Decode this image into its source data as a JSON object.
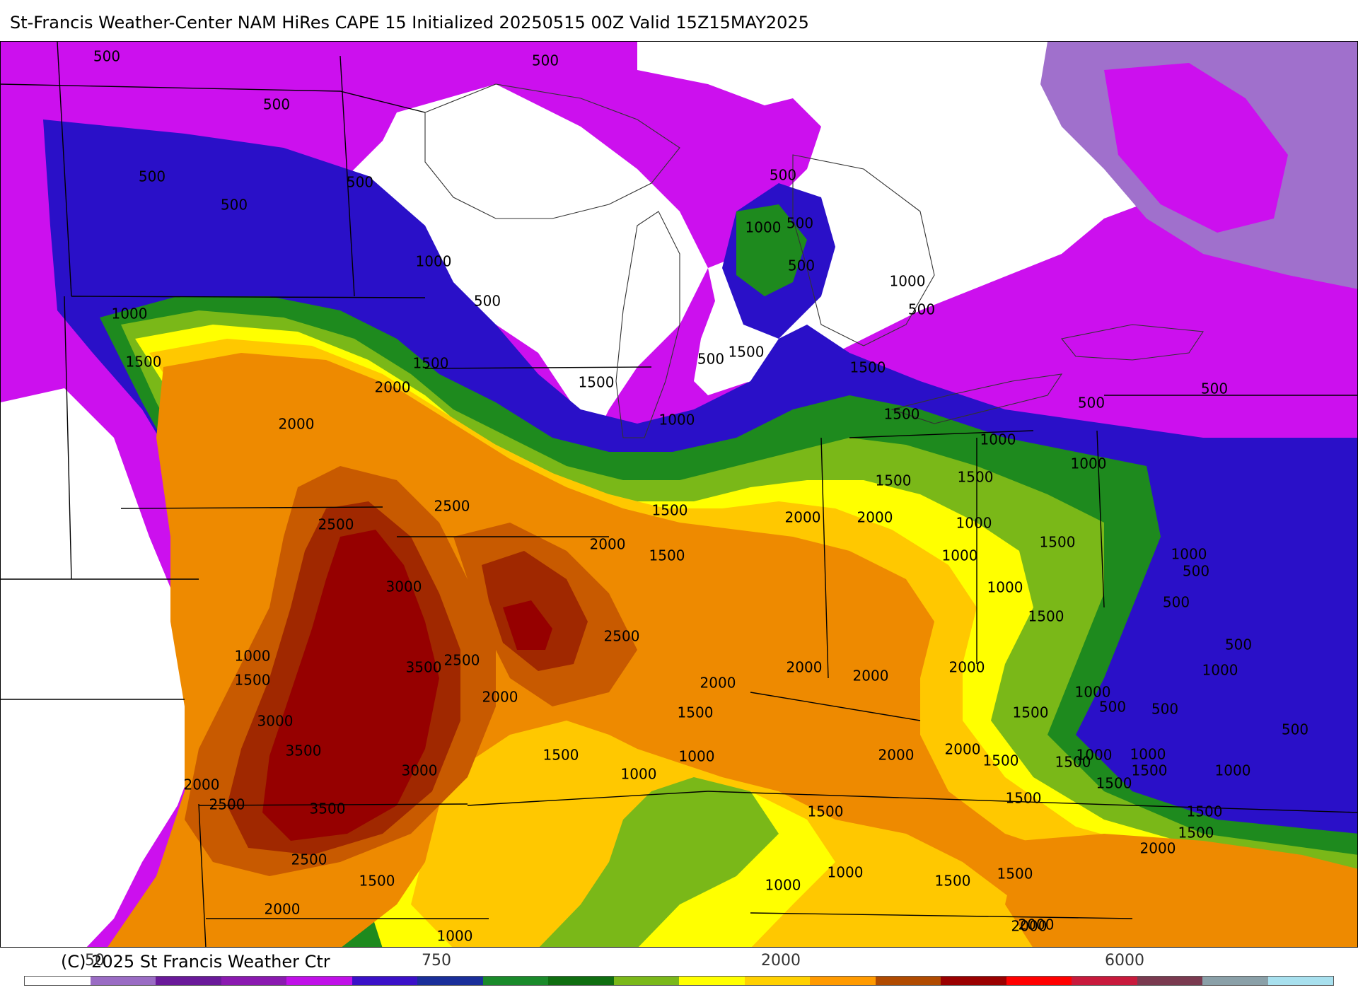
{
  "title": "St-Francis Weather-Center NAM HiRes CAPE  15 Initialized 20250515 00Z Valid 15Z15MAY2025",
  "credit": "(C) 2025 St Francis Weather Ctr",
  "colorbar": {
    "tick_labels": [
      "50",
      "750",
      "2000",
      "6000"
    ],
    "colors": [
      "#ffffff",
      "#9a6cc4",
      "#6a1a9a",
      "#8a1ab0",
      "#c010e8",
      "#3a10c8",
      "#1a2e9a",
      "#1a8a2a",
      "#0f6e10",
      "#7ab81a",
      "#ffff00",
      "#ffd000",
      "#ff9a00",
      "#b04a00",
      "#9a0000",
      "#ff0000",
      "#c81a3c",
      "#7a3a50",
      "#8aa0a8",
      "#a8e0ee"
    ]
  },
  "palette": {
    "none": "#ffffff",
    "light_purple": "#a070cc",
    "magenta": "#cc10ee",
    "violet": "#7a10d0",
    "blue": "#2a10c8",
    "green_dark": "#1e8a1e",
    "green_light": "#7ab818",
    "yellow": "#ffff00",
    "gold": "#ffc800",
    "orange": "#ee8a00",
    "dark_orange": "#c85a00",
    "brown_red": "#a02800",
    "dark_red": "#960000"
  },
  "contour_labels": [
    {
      "text": "500",
      "name": "contour-label-500-nw"
    },
    {
      "text": "500",
      "name": "contour-label-500-n"
    },
    {
      "text": "500",
      "name": "contour-label-500-w1"
    },
    {
      "text": "500",
      "name": "contour-label-500-w2"
    },
    {
      "text": "500",
      "name": "contour-label-500-w3"
    },
    {
      "text": "500",
      "name": "contour-label-500-mn"
    },
    {
      "text": "500",
      "name": "contour-label-500-mi1"
    },
    {
      "text": "500",
      "name": "contour-label-500-mi2"
    },
    {
      "text": "500",
      "name": "contour-label-500-mi3"
    },
    {
      "text": "500",
      "name": "contour-label-500-wi"
    },
    {
      "text": "500",
      "name": "contour-label-500-lm"
    },
    {
      "text": "500",
      "name": "contour-label-500-on"
    },
    {
      "text": "500",
      "name": "contour-label-500-oh"
    },
    {
      "text": "500",
      "name": "contour-label-500-ny"
    },
    {
      "text": "500",
      "name": "contour-label-500-pa1"
    },
    {
      "text": "500",
      "name": "contour-label-500-pa2"
    },
    {
      "text": "500",
      "name": "contour-label-500-pa3"
    },
    {
      "text": "500",
      "name": "contour-label-500-wv"
    },
    {
      "text": "500",
      "name": "contour-label-500-va"
    },
    {
      "text": "500",
      "name": "contour-label-500-md"
    },
    {
      "text": "1000",
      "name": "contour-label-1000-mn"
    },
    {
      "text": "1000",
      "name": "contour-label-1000-nd"
    },
    {
      "text": "1000",
      "name": "contour-label-1000-mi"
    },
    {
      "text": "1000",
      "name": "contour-label-1000-ml"
    },
    {
      "text": "1000",
      "name": "contour-label-1000-il"
    },
    {
      "text": "1000",
      "name": "contour-label-1000-oh1"
    },
    {
      "text": "1000",
      "name": "contour-label-1000-oh2"
    },
    {
      "text": "1000",
      "name": "contour-label-1000-in1"
    },
    {
      "text": "1000",
      "name": "contour-label-1000-in2"
    },
    {
      "text": "1000",
      "name": "contour-label-1000-in3"
    },
    {
      "text": "1000",
      "name": "contour-label-1000-pa"
    },
    {
      "text": "1000",
      "name": "contour-label-1000-wv"
    },
    {
      "text": "1000",
      "name": "contour-label-1000-va"
    },
    {
      "text": "1000",
      "name": "contour-label-1000-ky"
    },
    {
      "text": "1000",
      "name": "contour-label-1000-nc"
    },
    {
      "text": "1000",
      "name": "contour-label-1000-ks"
    },
    {
      "text": "1000",
      "name": "contour-label-1000-mo1"
    },
    {
      "text": "1000",
      "name": "contour-label-1000-mo2"
    },
    {
      "text": "1000",
      "name": "contour-label-1000-ar1"
    },
    {
      "text": "1000",
      "name": "contour-label-1000-ar2"
    },
    {
      "text": "1000",
      "name": "contour-label-1000-ok"
    },
    {
      "text": "1000",
      "name": "contour-label-1000-tn"
    },
    {
      "text": "1500",
      "name": "contour-label-1500-sd"
    },
    {
      "text": "1500",
      "name": "contour-label-1500-mn"
    },
    {
      "text": "1500",
      "name": "contour-label-1500-wi"
    },
    {
      "text": "1500",
      "name": "contour-label-1500-mi1"
    },
    {
      "text": "1500",
      "name": "contour-label-1500-mi2"
    },
    {
      "text": "1500",
      "name": "contour-label-1500-oh"
    },
    {
      "text": "1500",
      "name": "contour-label-1500-il1"
    },
    {
      "text": "1500",
      "name": "contour-label-1500-il2"
    },
    {
      "text": "1500",
      "name": "contour-label-1500-in"
    },
    {
      "text": "1500",
      "name": "contour-label-1500-oh2"
    },
    {
      "text": "1500",
      "name": "contour-label-1500-oh3"
    },
    {
      "text": "1500",
      "name": "contour-label-1500-oh4"
    },
    {
      "text": "1500",
      "name": "contour-label-1500-ne"
    },
    {
      "text": "1500",
      "name": "contour-label-1500-mo1"
    },
    {
      "text": "1500",
      "name": "contour-label-1500-mo2"
    },
    {
      "text": "1500",
      "name": "contour-label-1500-ks"
    },
    {
      "text": "1500",
      "name": "contour-label-1500-ky1"
    },
    {
      "text": "1500",
      "name": "contour-label-1500-ky2"
    },
    {
      "text": "1500",
      "name": "contour-label-1500-wv"
    },
    {
      "text": "1500",
      "name": "contour-label-1500-tn1"
    },
    {
      "text": "1500",
      "name": "contour-label-1500-tn2"
    },
    {
      "text": "1500",
      "name": "contour-label-1500-va1"
    },
    {
      "text": "1500",
      "name": "contour-label-1500-va2"
    },
    {
      "text": "1500",
      "name": "contour-label-1500-sc"
    },
    {
      "text": "1500",
      "name": "contour-label-1500-ms"
    },
    {
      "text": "1500",
      "name": "contour-label-1500-ok"
    },
    {
      "text": "1500",
      "name": "contour-label-1500-tn3"
    },
    {
      "text": "2000",
      "name": "contour-label-2000-sd"
    },
    {
      "text": "2000",
      "name": "contour-label-2000-ne"
    },
    {
      "text": "2000",
      "name": "contour-label-2000-ia"
    },
    {
      "text": "2000",
      "name": "contour-label-2000-il1"
    },
    {
      "text": "2000",
      "name": "contour-label-2000-il2"
    },
    {
      "text": "2000",
      "name": "contour-label-2000-in"
    },
    {
      "text": "2000",
      "name": "contour-label-2000-mo"
    },
    {
      "text": "2000",
      "name": "contour-label-2000-ky1"
    },
    {
      "text": "2000",
      "name": "contour-label-2000-ky2"
    },
    {
      "text": "2000",
      "name": "contour-label-2000-ky3"
    },
    {
      "text": "2000",
      "name": "contour-label-2000-wv"
    },
    {
      "text": "2000",
      "name": "contour-label-2000-tn1"
    },
    {
      "text": "2000",
      "name": "contour-label-2000-tn2"
    },
    {
      "text": "2000",
      "name": "contour-label-2000-il3"
    },
    {
      "text": "2000",
      "name": "contour-label-2000-co"
    },
    {
      "text": "2000",
      "name": "contour-label-2000-ok"
    },
    {
      "text": "2000",
      "name": "contour-label-2000-nc"
    },
    {
      "text": "2000",
      "name": "contour-label-2000-ga"
    },
    {
      "text": "2500",
      "name": "contour-label-2500-ne1"
    },
    {
      "text": "2500",
      "name": "contour-label-2500-ia"
    },
    {
      "text": "2500",
      "name": "contour-label-2500-il"
    },
    {
      "text": "2500",
      "name": "contour-label-2500-mo"
    },
    {
      "text": "2500",
      "name": "contour-label-2500-ks1"
    },
    {
      "text": "2500",
      "name": "contour-label-2500-ks2"
    },
    {
      "text": "3000",
      "name": "contour-label-3000-ne"
    },
    {
      "text": "3000",
      "name": "contour-label-3000-ks1"
    },
    {
      "text": "3000",
      "name": "contour-label-3000-ks2"
    },
    {
      "text": "3500",
      "name": "contour-label-3500-ks1"
    },
    {
      "text": "3500",
      "name": "contour-label-3500-ks2"
    },
    {
      "text": "3500",
      "name": "contour-label-3500-ks3"
    }
  ]
}
